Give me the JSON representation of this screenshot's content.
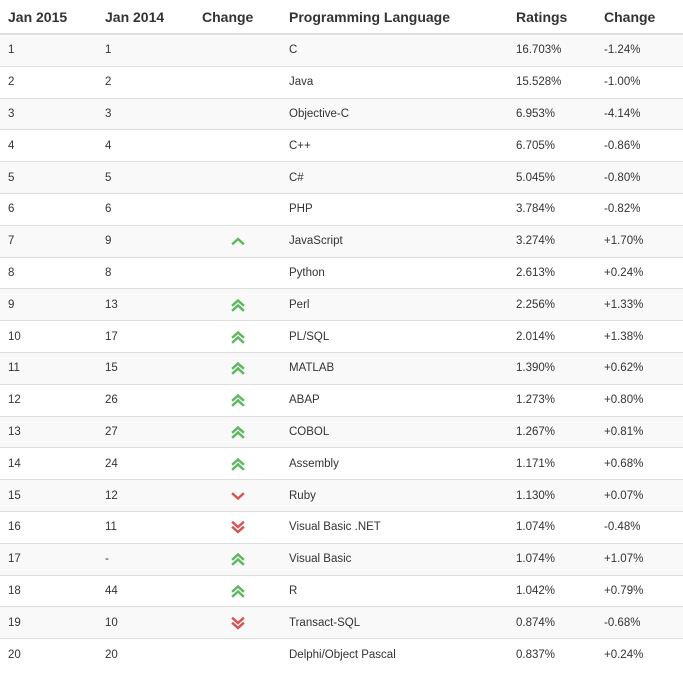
{
  "colors": {
    "up": "#5cb85c",
    "down": "#d9534f"
  },
  "headers": [
    "Jan 2015",
    "Jan 2014",
    "Change",
    "Programming Language",
    "Ratings",
    "Change"
  ],
  "rows": [
    {
      "rank2015": "1",
      "rank2014": "1",
      "trend": "none",
      "language": "C",
      "rating": "16.703%",
      "change": "-1.24%"
    },
    {
      "rank2015": "2",
      "rank2014": "2",
      "trend": "none",
      "language": "Java",
      "rating": "15.528%",
      "change": "-1.00%"
    },
    {
      "rank2015": "3",
      "rank2014": "3",
      "trend": "none",
      "language": "Objective-C",
      "rating": "6.953%",
      "change": "-4.14%"
    },
    {
      "rank2015": "4",
      "rank2014": "4",
      "trend": "none",
      "language": "C++",
      "rating": "6.705%",
      "change": "-0.86%"
    },
    {
      "rank2015": "5",
      "rank2014": "5",
      "trend": "none",
      "language": "C#",
      "rating": "5.045%",
      "change": "-0.80%"
    },
    {
      "rank2015": "6",
      "rank2014": "6",
      "trend": "none",
      "language": "PHP",
      "rating": "3.784%",
      "change": "-0.82%"
    },
    {
      "rank2015": "7",
      "rank2014": "9",
      "trend": "up",
      "language": "JavaScript",
      "rating": "3.274%",
      "change": "+1.70%"
    },
    {
      "rank2015": "8",
      "rank2014": "8",
      "trend": "none",
      "language": "Python",
      "rating": "2.613%",
      "change": "+0.24%"
    },
    {
      "rank2015": "9",
      "rank2014": "13",
      "trend": "double-up",
      "language": "Perl",
      "rating": "2.256%",
      "change": "+1.33%"
    },
    {
      "rank2015": "10",
      "rank2014": "17",
      "trend": "double-up",
      "language": "PL/SQL",
      "rating": "2.014%",
      "change": "+1.38%"
    },
    {
      "rank2015": "11",
      "rank2014": "15",
      "trend": "double-up",
      "language": "MATLAB",
      "rating": "1.390%",
      "change": "+0.62%"
    },
    {
      "rank2015": "12",
      "rank2014": "26",
      "trend": "double-up",
      "language": "ABAP",
      "rating": "1.273%",
      "change": "+0.80%"
    },
    {
      "rank2015": "13",
      "rank2014": "27",
      "trend": "double-up",
      "language": "COBOL",
      "rating": "1.267%",
      "change": "+0.81%"
    },
    {
      "rank2015": "14",
      "rank2014": "24",
      "trend": "double-up",
      "language": "Assembly",
      "rating": "1.171%",
      "change": "+0.68%"
    },
    {
      "rank2015": "15",
      "rank2014": "12",
      "trend": "down",
      "language": "Ruby",
      "rating": "1.130%",
      "change": "+0.07%"
    },
    {
      "rank2015": "16",
      "rank2014": "11",
      "trend": "double-down",
      "language": "Visual Basic .NET",
      "rating": "1.074%",
      "change": "-0.48%"
    },
    {
      "rank2015": "17",
      "rank2014": "-",
      "trend": "double-up",
      "language": "Visual Basic",
      "rating": "1.074%",
      "change": "+1.07%"
    },
    {
      "rank2015": "18",
      "rank2014": "44",
      "trend": "double-up",
      "language": "R",
      "rating": "1.042%",
      "change": "+0.79%"
    },
    {
      "rank2015": "19",
      "rank2014": "10",
      "trend": "double-down",
      "language": "Transact-SQL",
      "rating": "0.874%",
      "change": "-0.68%"
    },
    {
      "rank2015": "20",
      "rank2014": "20",
      "trend": "none",
      "language": "Delphi/Object Pascal",
      "rating": "0.837%",
      "change": "+0.24%"
    }
  ]
}
